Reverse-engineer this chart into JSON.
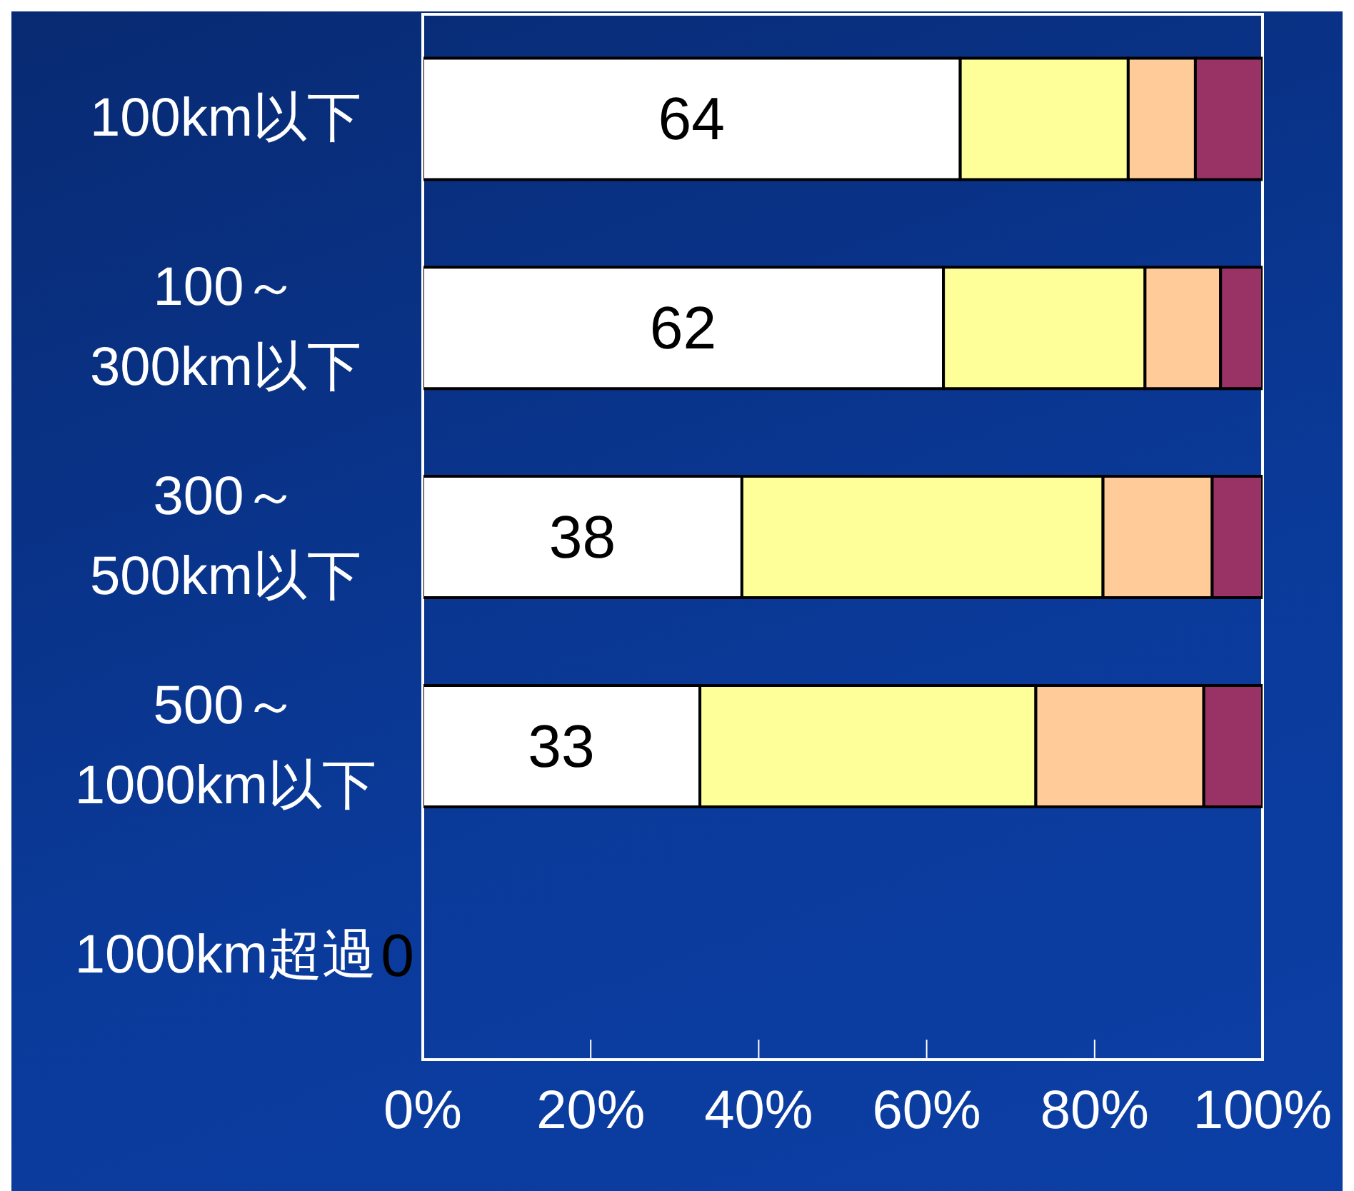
{
  "chart_data": {
    "type": "bar",
    "orientation": "horizontal",
    "stacked": true,
    "categories": [
      "100km以下",
      "100～\n300km以下",
      "300～\n500km以下",
      "500～\n1000km以下",
      "1000km超過"
    ],
    "series": [
      {
        "color": "#ffffff",
        "values": [
          64,
          62,
          38,
          33,
          0
        ],
        "value_labels": [
          "64",
          "62",
          "38",
          "33",
          "0"
        ]
      },
      {
        "color": "#ffff99",
        "values": [
          20,
          24,
          43,
          40,
          0
        ]
      },
      {
        "color": "#ffcc99",
        "values": [
          8,
          9,
          13,
          20,
          0
        ]
      },
      {
        "color": "#993366",
        "values": [
          8,
          5,
          6,
          7,
          0
        ]
      }
    ],
    "xlim": [
      0,
      100
    ],
    "xticks": [
      {
        "value": 0,
        "label": "0%"
      },
      {
        "value": 20,
        "label": "20%"
      },
      {
        "value": 40,
        "label": "40%"
      },
      {
        "value": 60,
        "label": "60%"
      },
      {
        "value": 80,
        "label": "80%"
      },
      {
        "value": 100,
        "label": "100%"
      }
    ],
    "grid": false,
    "legend": false
  }
}
